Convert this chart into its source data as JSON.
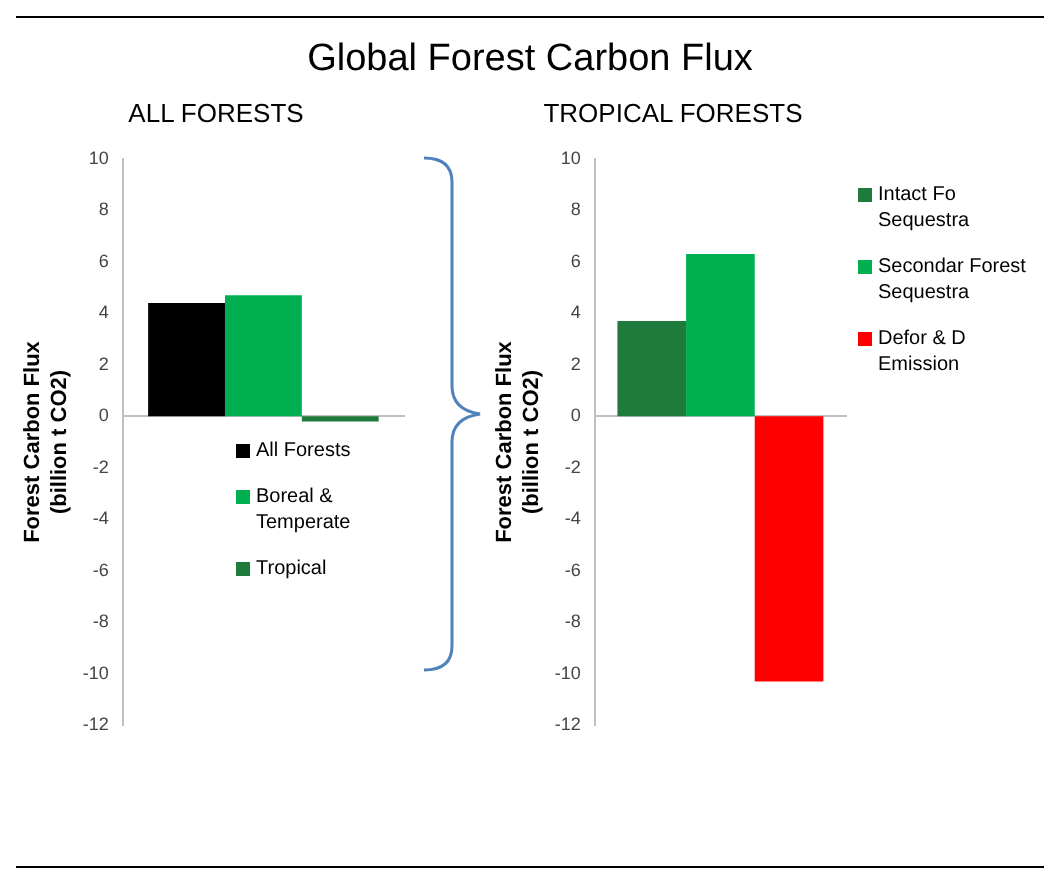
{
  "chart_data": [
    {
      "type": "bar",
      "title": "Global Forest Carbon Flux",
      "subtitle": "ALL FORESTS",
      "ylabel": "Forest Carbon Flux (billion t CO2)",
      "categories": [
        null
      ],
      "series": [
        {
          "name": "All Forests",
          "color": "#000000",
          "values": [
            4.4
          ]
        },
        {
          "name": "Boreal & Temperate",
          "color": "#00b050",
          "values": [
            4.7
          ]
        },
        {
          "name": "Tropical",
          "color": "#1e7b3c",
          "values": [
            -0.2
          ]
        }
      ],
      "ylim": [
        -12,
        10
      ],
      "yticks": [
        -12,
        -10,
        -8,
        -6,
        -4,
        -2,
        0,
        2,
        4,
        6,
        8,
        10
      ],
      "tick_labels": "y",
      "legend": "bottom"
    },
    {
      "type": "bar",
      "subtitle": "TROPICAL FORESTS",
      "ylabel": "Forest Carbon Flux (billion t CO2)",
      "categories": [
        null
      ],
      "series": [
        {
          "name": "Intact Fo Sequestra",
          "color": "#1e7b3c",
          "values": [
            3.7
          ]
        },
        {
          "name": "Secondar Forest Sequestra",
          "color": "#00b050",
          "values": [
            6.3
          ]
        },
        {
          "name": "Defor & D Emission",
          "color": "#ff0000",
          "values": [
            -10.3
          ]
        }
      ],
      "ylim": [
        -12,
        10
      ],
      "yticks": [
        -12,
        -10,
        -8,
        -6,
        -4,
        -2,
        0,
        2,
        4,
        6,
        8,
        10
      ],
      "tick_labels": "y",
      "legend": "right"
    }
  ]
}
